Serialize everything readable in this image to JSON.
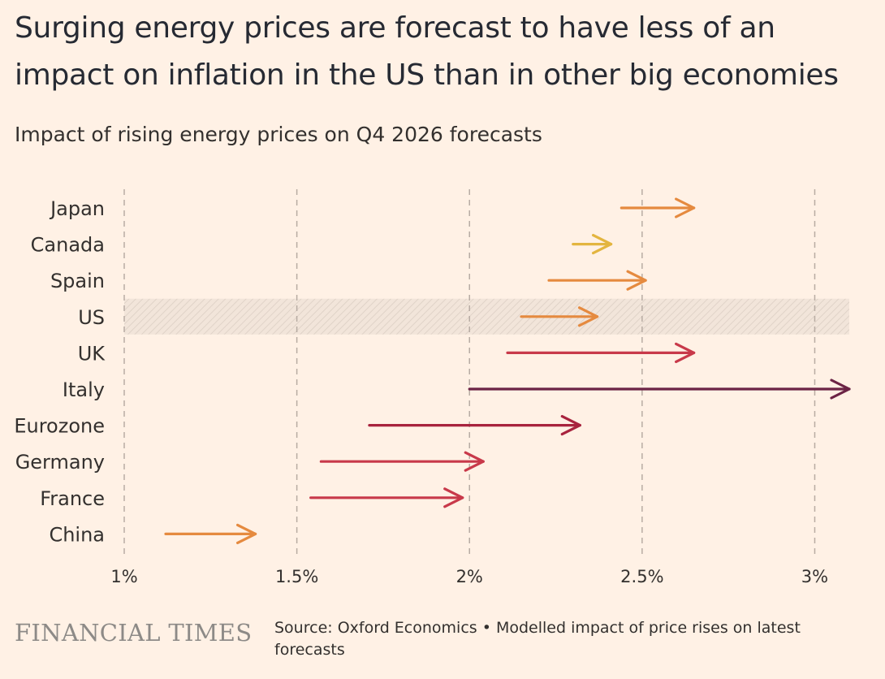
{
  "header": {
    "title": "Surging energy prices are forecast to have less of an impact on inflation in the US than in other big economies",
    "subtitle": "Impact of rising energy prices on Q4 2026 forecasts"
  },
  "footer": {
    "logo": "FINANCIAL TIMES",
    "source": "Source: Oxford Economics • Modelled impact of price rises on latest forecasts"
  },
  "chart_data": {
    "type": "arrow",
    "xlim": [
      1.0,
      3.1
    ],
    "x_ticks": [
      1,
      1.5,
      2,
      2.5,
      3
    ],
    "x_tick_labels": [
      "1%",
      "1.5%",
      "2%",
      "2.5%",
      "3%"
    ],
    "grid": "vertical dashed",
    "highlighted_category": "US",
    "series": [
      {
        "category": "Japan",
        "from": 2.44,
        "to": 2.65,
        "color": "#e58a3f"
      },
      {
        "category": "Canada",
        "from": 2.3,
        "to": 2.41,
        "color": "#e3b53f"
      },
      {
        "category": "Spain",
        "from": 2.23,
        "to": 2.51,
        "color": "#e58a3f"
      },
      {
        "category": "US",
        "from": 2.15,
        "to": 2.37,
        "color": "#e58a3f"
      },
      {
        "category": "UK",
        "from": 2.11,
        "to": 2.65,
        "color": "#c8394a"
      },
      {
        "category": "Italy",
        "from": 2.0,
        "to": 3.1,
        "color": "#6b2345"
      },
      {
        "category": "Eurozone",
        "from": 1.71,
        "to": 2.32,
        "color": "#a8233e"
      },
      {
        "category": "Germany",
        "from": 1.57,
        "to": 2.04,
        "color": "#c8394a"
      },
      {
        "category": "France",
        "from": 1.54,
        "to": 1.98,
        "color": "#c8394a"
      },
      {
        "category": "China",
        "from": 1.12,
        "to": 1.38,
        "color": "#e58a3f"
      }
    ]
  }
}
